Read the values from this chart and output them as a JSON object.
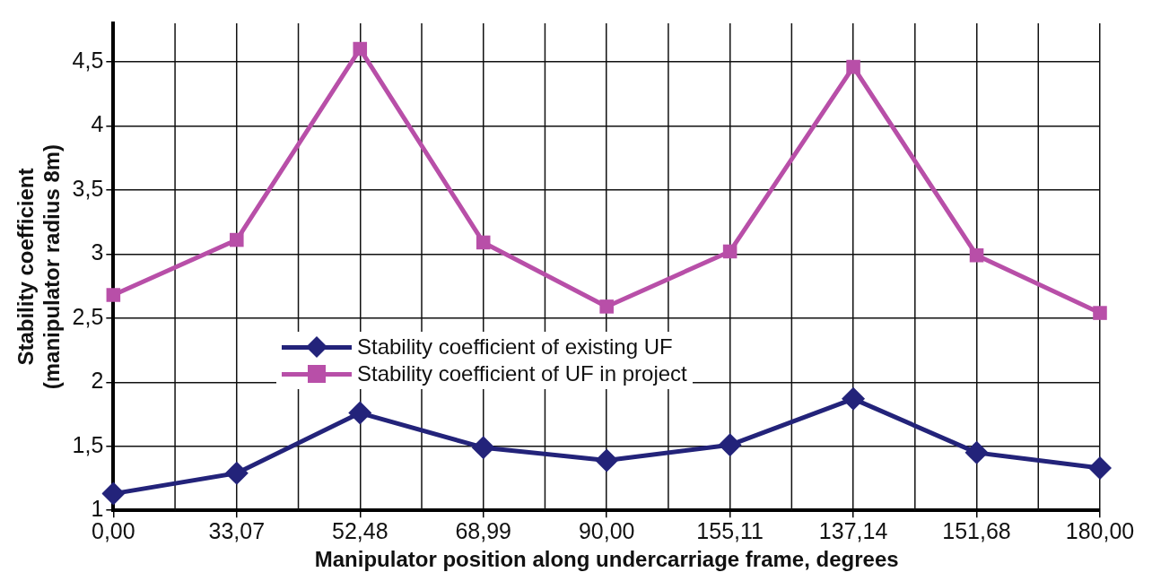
{
  "chart_data": {
    "type": "line",
    "xlabel": "Manipulator position along undercarriage frame, degrees",
    "ylabel": "Stability coefficient (manipulator radius 8m)",
    "categories": [
      "0,00",
      "33,07",
      "52,48",
      "68,99",
      "90,00",
      "155,11",
      "137,14",
      "151,68",
      "180,00"
    ],
    "series": [
      {
        "name": "Stability coefficient of existing UF",
        "color": "#23237a",
        "marker": "diamond",
        "values": [
          1.13,
          1.29,
          1.76,
          1.49,
          1.39,
          1.51,
          1.87,
          1.45,
          1.33
        ]
      },
      {
        "name": "Stability coefficient of UF in project",
        "color": "#b84fa8",
        "marker": "square",
        "values": [
          2.68,
          3.11,
          4.6,
          3.09,
          2.59,
          3.02,
          4.46,
          2.99,
          2.54
        ]
      }
    ],
    "ylim": [
      1,
      4.8
    ],
    "yticks": [
      1,
      {
        "value": 1.5,
        "label": "1,5"
      },
      2,
      {
        "value": 2.5,
        "label": "2,5"
      },
      3,
      {
        "value": 3.5,
        "label": "3,5"
      },
      4,
      {
        "value": 4.5,
        "label": "4,5"
      }
    ],
    "grid": true,
    "legend": "center",
    "line_style": "solid"
  }
}
